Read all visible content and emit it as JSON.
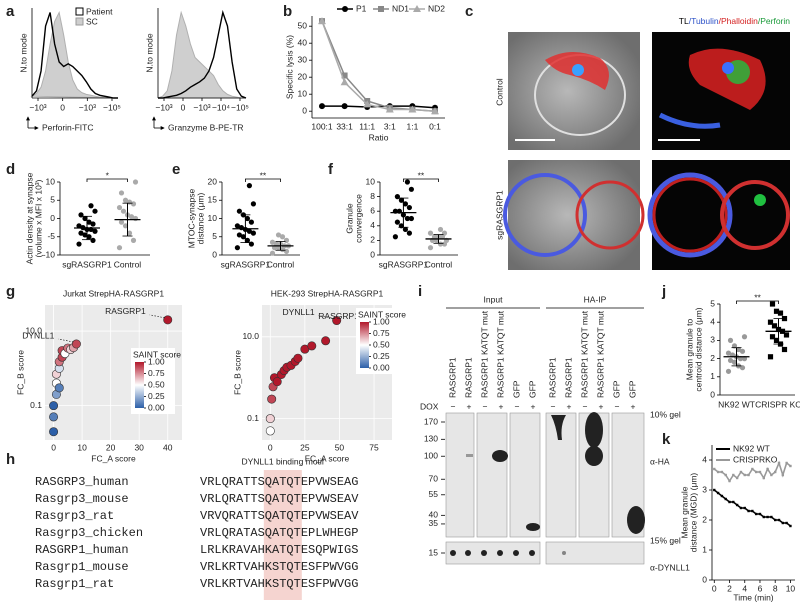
{
  "figure": {
    "a": {
      "label": "a",
      "legend": [
        "Patient",
        "SC"
      ],
      "plots": [
        {
          "ylabel": "N.to mode",
          "xlabel": "Perforin-FITC",
          "xticks": [
            "−10³",
            "0",
            "−10³",
            "−10⁵"
          ],
          "ylim": [
            0,
            100
          ],
          "sc": [
            2,
            5,
            12,
            30,
            60,
            85,
            95,
            70,
            40,
            20,
            10,
            6,
            4,
            3,
            2,
            1,
            1,
            0,
            0,
            0
          ],
          "patient": [
            2,
            8,
            30,
            80,
            95,
            60,
            40,
            35,
            38,
            35,
            30,
            25,
            18,
            10,
            5,
            3,
            2,
            1,
            0,
            0
          ]
        },
        {
          "ylabel": "N.to mode",
          "xlabel": "Granzyme B-PE-TR",
          "xticks": [
            "−10³",
            "0",
            "−10³",
            "−10⁴",
            "−10⁵"
          ],
          "ylim": [
            0,
            100
          ],
          "sc": [
            0,
            2,
            8,
            30,
            70,
            95,
            80,
            60,
            45,
            40,
            35,
            30,
            25,
            15,
            8,
            4,
            2,
            1,
            0,
            0
          ],
          "patient": [
            0,
            0,
            1,
            2,
            3,
            5,
            8,
            12,
            15,
            18,
            22,
            30,
            45,
            70,
            95,
            80,
            40,
            10,
            2,
            0
          ]
        }
      ]
    },
    "b": {
      "label": "b",
      "ylabel": "Specific lysis (%)",
      "xlabel": "Ratio",
      "categories": [
        "100:1",
        "33:1",
        "11:1",
        "3:1",
        "1:1",
        "0:1"
      ],
      "ylim": [
        -4,
        56
      ],
      "yticks": [
        0,
        10,
        20,
        30,
        40,
        50
      ],
      "series": [
        {
          "name": "P1",
          "color": "#000000",
          "marker": "circle",
          "values": [
            3,
            3,
            2.5,
            3,
            3,
            2
          ]
        },
        {
          "name": "ND1",
          "color": "#888888",
          "marker": "square",
          "values": [
            53,
            21,
            6,
            2,
            1,
            0
          ]
        },
        {
          "name": "ND2",
          "color": "#aaaaaa",
          "marker": "triangle",
          "values": [
            53,
            17,
            4,
            1,
            1,
            0
          ]
        }
      ]
    },
    "c": {
      "label": "c",
      "header": [
        "TL",
        "/Tubulin",
        "/Phalloidin",
        "/Perforin"
      ],
      "rows": [
        "Control",
        "sgRASGRP1"
      ]
    },
    "d": {
      "label": "d",
      "ylabel": [
        "Actin density at synapse",
        "(volume x MFI x 10³)"
      ],
      "ylim": [
        -10,
        10
      ],
      "yticks": [
        -10,
        -5,
        0,
        5,
        10
      ],
      "sig": "*",
      "groups": [
        {
          "name": "sgRASGRP1",
          "color": "#000000",
          "marker": "circle",
          "mean": -2.6,
          "sd": 3.2,
          "values": [
            -7,
            -6,
            -5,
            -4.5,
            -4,
            -3.5,
            -3,
            -3,
            -2.5,
            -2,
            -1.5,
            -1,
            0,
            1,
            2,
            3.5
          ]
        },
        {
          "name": "Control",
          "color": "#aaaaaa",
          "marker": "circle",
          "mean": -0.3,
          "sd": 4.5,
          "values": [
            -8,
            -6,
            -4,
            -2,
            -1,
            0,
            0.5,
            1,
            2,
            3,
            4,
            4.5,
            5,
            7,
            10
          ]
        }
      ]
    },
    "e": {
      "label": "e",
      "ylabel": [
        "MTOC-synapse",
        "distance (μm)"
      ],
      "ylim": [
        0,
        20
      ],
      "yticks": [
        0,
        5,
        10,
        15,
        20
      ],
      "sig": "**",
      "groups": [
        {
          "name": "sgRASGRP1",
          "color": "#000000",
          "marker": "circle",
          "mean": 7.2,
          "sd": 3.8,
          "values": [
            2,
            3,
            4,
            5,
            5.5,
            6,
            6.5,
            7,
            7.5,
            8,
            9,
            10,
            11,
            12,
            14,
            19
          ]
        },
        {
          "name": "Control",
          "color": "#aaaaaa",
          "marker": "circle",
          "mean": 2.5,
          "sd": 1.2,
          "values": [
            0.5,
            1,
            1.5,
            2,
            2,
            2.5,
            2.5,
            3,
            3,
            3.5,
            4,
            5,
            5.5
          ]
        }
      ]
    },
    "f": {
      "label": "f",
      "ylabel": [
        "Granule",
        "convergence"
      ],
      "ylim": [
        0,
        10
      ],
      "yticks": [
        0,
        2,
        4,
        6,
        8,
        10
      ],
      "sig": "**",
      "groups": [
        {
          "name": "sgRASGRP1",
          "color": "#000000",
          "marker": "circle",
          "mean": 5.8,
          "sd": 2,
          "values": [
            2.5,
            3,
            3.5,
            4,
            4.5,
            5,
            5,
            5.5,
            6,
            6,
            6.5,
            7,
            7.5,
            8,
            9,
            10
          ]
        },
        {
          "name": "Control",
          "color": "#aaaaaa",
          "marker": "circle",
          "mean": 2.2,
          "sd": 0.6,
          "values": [
            1,
            1.5,
            1.5,
            2,
            2,
            2,
            2.5,
            2.5,
            2.5,
            3,
            3,
            3.5
          ]
        }
      ]
    },
    "g": {
      "label": "g",
      "colorbar": {
        "title": "SAINT score",
        "ticks": [
          {
            "value": 1,
            "label": "1.00"
          },
          {
            "value": 0.75,
            "label": "0.75"
          },
          {
            "value": 0.5,
            "label": "0.50"
          },
          {
            "value": 0.25,
            "label": "0.25"
          },
          {
            "value": 0,
            "label": "0.00"
          }
        ]
      },
      "plots": [
        {
          "title": "Jurkat StrepHA-RASGRP1",
          "xlabel": "FC_A score",
          "ylabel": "FC_B score",
          "xlim": [
            -3,
            45
          ],
          "xticks": [
            0,
            10,
            20,
            30,
            40
          ],
          "ylim": [
            0.012,
            50
          ],
          "yticks": [
            0.1,
            {
              "value": 10,
              "label": "10.0"
            }
          ],
          "log_y": true,
          "x": [
            0,
            0,
            0,
            1,
            1,
            1,
            2,
            2,
            2,
            3,
            3,
            4,
            5,
            6,
            7,
            8,
            40
          ],
          "y": [
            0.02,
            0.05,
            0.1,
            0.2,
            0.4,
            0.7,
            1,
            1.5,
            0.3,
            2,
            3,
            2.5,
            3.5,
            3.2,
            3.6,
            4.5,
            20
          ],
          "saint": [
            0,
            0.1,
            0,
            0.2,
            0.5,
            0.6,
            0.4,
            0.8,
            0.1,
            0.9,
            0.9,
            0.5,
            0.8,
            0.6,
            0.7,
            0.9,
            1
          ],
          "labels": [
            null,
            null,
            null,
            null,
            null,
            null,
            null,
            null,
            null,
            null,
            null,
            null,
            null,
            null,
            null,
            "DYNLL1",
            "RASGRP1"
          ]
        },
        {
          "title": "HEK-293 StrepHA-RASGRP1",
          "xlabel": "FC_A score",
          "ylabel": "FC_B score",
          "xlim": [
            -6,
            88
          ],
          "xticks": [
            0,
            25,
            50,
            75
          ],
          "ylim": [
            0.03,
            60
          ],
          "yticks": [
            0.1,
            {
              "value": 10,
              "label": "10.0"
            }
          ],
          "log_y": true,
          "x": [
            0,
            0,
            1,
            2,
            3,
            5,
            8,
            10,
            12,
            15,
            18,
            20,
            25,
            30,
            40,
            48,
            80
          ],
          "y": [
            0.05,
            0.1,
            0.3,
            0.6,
            1,
            0.8,
            1.2,
            1.5,
            1.8,
            2,
            2.5,
            3,
            5,
            6,
            8,
            25,
            20
          ],
          "saint": [
            0.5,
            0.6,
            0.9,
            0.9,
            1,
            1,
            1,
            1,
            1,
            1,
            1,
            1,
            1,
            1,
            1,
            1,
            1
          ],
          "labels": [
            null,
            null,
            null,
            null,
            null,
            null,
            null,
            null,
            null,
            null,
            null,
            null,
            null,
            null,
            null,
            "DYNLL1",
            "RASGRP1"
          ]
        }
      ]
    },
    "h": {
      "label": "h",
      "motif": "DYNLL1 binding motif",
      "rows": [
        {
          "name": "RASGRP3_human",
          "seq": "VRLQRATTSQATQTEPVWSEAG",
          "color": "#333333"
        },
        {
          "name": "Rasgrp3_mouse",
          "seq": "VRLQRATTSQATQTEPVWSEAV",
          "color": "#333333"
        },
        {
          "name": "Rasgrp3_rat",
          "seq": "VRVQRATTSQATQTEPVWSEAV",
          "color": "#333333"
        },
        {
          "name": "Rasgrp3_chicken",
          "seq": "VRLQRATASQATQTEPLWHEGP",
          "color": "#333333"
        },
        {
          "name": "RASGRP1_human",
          "seq": "LRLKRAVAHKATQTESQPWIGS",
          "color": "#3a8dc9"
        },
        {
          "name": "Rasgrp1_mouse",
          "seq": "VRLKRTVAHKSTQTESFPWVGG",
          "color": "#3a8dc9"
        },
        {
          "name": "Rasgrp1_rat",
          "seq": "VRLKRTVAHKSTQTESFPWVGG",
          "color": "#3a8dc9"
        }
      ]
    },
    "i": {
      "label": "i",
      "groups": [
        "Input",
        "HA-IP"
      ],
      "lanes": [
        "RASGRP1",
        "RASGRP1",
        "RASGRP1 KATQT mut",
        "RASGRP1 KATQT mut",
        "GFP",
        "GFP",
        "RASGRP1",
        "RASGRP1",
        "RASGRP1 KATQT mut",
        "RASGRP1 KATQT mut",
        "GFP",
        "GFP"
      ],
      "dox_label": "DOX",
      "dox": [
        "−",
        "+",
        "−",
        "+",
        "−",
        "+",
        "−",
        "+",
        "−",
        "+",
        "−",
        "+"
      ],
      "mw": [
        170,
        130,
        100,
        70,
        55,
        40,
        35
      ],
      "mw_lower": [
        15
      ],
      "gel_labels": [
        "10% gel",
        "α-HA",
        "15% gel",
        "α-DYNLL1"
      ]
    },
    "j": {
      "label": "j",
      "ylabel": [
        "Mean granule to",
        "centroid distance (μm)"
      ],
      "ylim": [
        0,
        5
      ],
      "yticks": [
        0,
        1,
        2,
        3,
        4,
        5
      ],
      "sig": "**",
      "groups": [
        {
          "name": "NK92 WT",
          "color": "#999999",
          "marker": "circle",
          "mean": 2.1,
          "sd": 0.5,
          "values": [
            1.3,
            1.5,
            1.6,
            1.8,
            1.9,
            2,
            2,
            2.1,
            2.2,
            2.3,
            2.4,
            2.5,
            2.7,
            3,
            3.2
          ]
        },
        {
          "name": "CRISPR KO",
          "color": "#000000",
          "marker": "square",
          "mean": 3.5,
          "sd": 0.7,
          "values": [
            2.1,
            2.5,
            2.8,
            3,
            3.2,
            3.3,
            3.5,
            3.6,
            3.8,
            4,
            4.2,
            4.5,
            4.6,
            5
          ]
        }
      ]
    },
    "k": {
      "label": "k",
      "ylabel": [
        "Mean granule",
        "distance (MGD) (μm)"
      ],
      "xlabel": "Time (min)",
      "xlim": [
        -0.3,
        10.6
      ],
      "xticks": [
        0,
        2,
        4,
        6,
        8,
        10
      ],
      "ylim": [
        0,
        4.5
      ],
      "yticks": [
        0,
        1,
        2,
        3,
        4
      ],
      "x": [
        0,
        0.5,
        1,
        1.5,
        2,
        2.5,
        3,
        3.5,
        4,
        4.5,
        5,
        5.5,
        6,
        6.5,
        7,
        7.5,
        8,
        8.5,
        9,
        9.5,
        10
      ],
      "series": [
        {
          "name": "NK92 WT",
          "color": "#000000",
          "values": [
            3.0,
            2.9,
            2.8,
            2.7,
            2.6,
            2.6,
            2.5,
            2.4,
            2.4,
            2.3,
            2.3,
            2.2,
            2.2,
            2.1,
            2.1,
            2.1,
            2.0,
            2.0,
            1.9,
            1.9,
            1.8
          ]
        },
        {
          "name": "CRISPRKO",
          "color": "#999999",
          "values": [
            3.7,
            3.6,
            3.6,
            3.5,
            3.3,
            3.5,
            3.4,
            3.6,
            3.5,
            3.5,
            3.7,
            3.6,
            3.6,
            3.4,
            3.7,
            3.5,
            3.6,
            3.9,
            3.5,
            3.9,
            3.8
          ]
        }
      ]
    }
  }
}
